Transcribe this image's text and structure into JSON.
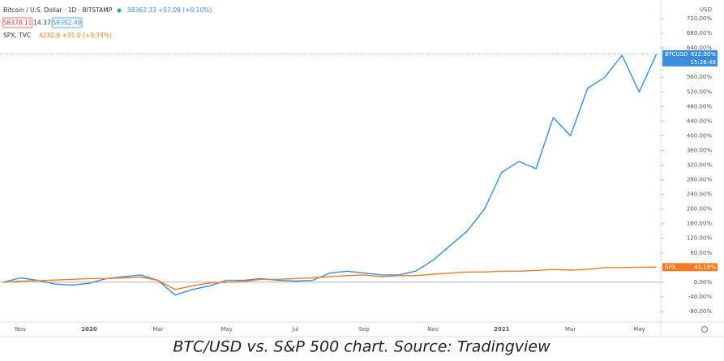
{
  "chart_data": {
    "type": "line",
    "header": {
      "symbol": "Bitcoin / U.S. Dollar · 1D · BITSTAMP",
      "quote": "58362.33 +57.09 (+0.10%)",
      "bid": "58378.11",
      "spread": "14.37",
      "ask": "58392.48",
      "compare_symbol": "SPX, TVC",
      "compare_quote": "4232.6 +31.0 (+0.74%)",
      "currency": "USD",
      "time": "15:28:48"
    },
    "caption": "BTC/USD vs. S&P 500 chart. Source: Tradingview",
    "categories": [
      null,
      "Nov",
      null,
      null,
      null,
      "2020",
      null,
      null,
      null,
      "Mar",
      null,
      null,
      null,
      "May",
      null,
      null,
      null,
      "Jul",
      null,
      null,
      null,
      "Sep",
      null,
      null,
      null,
      "Nov",
      null,
      null,
      null,
      "2021",
      null,
      null,
      null,
      "Mar",
      null,
      null,
      null,
      "May",
      null
    ],
    "series": [
      {
        "name": "BTCUSD",
        "color": "#3a8ee0",
        "values": [
          0,
          12,
          5,
          -5,
          -8,
          -3,
          10,
          15,
          20,
          5,
          -35,
          -20,
          -10,
          5,
          5,
          10,
          5,
          3,
          5,
          25,
          30,
          25,
          20,
          20,
          30,
          60,
          100,
          140,
          200,
          300,
          330,
          310,
          450,
          400,
          530,
          560,
          620,
          520,
          622.9
        ],
        "value_labels": [
          null,
          null,
          null,
          null,
          null,
          null,
          null,
          null,
          null,
          null,
          null,
          null,
          null,
          null,
          null,
          null,
          null,
          null,
          null,
          null,
          null,
          null,
          null,
          null,
          null,
          null,
          null,
          null,
          null,
          null,
          null,
          null,
          null,
          null,
          null,
          null,
          null,
          null,
          "622.90%"
        ]
      },
      {
        "name": "SPX",
        "color": "#f57c24",
        "values": [
          0,
          3,
          4,
          6,
          8,
          10,
          10,
          12,
          14,
          5,
          -20,
          -10,
          -2,
          0,
          2,
          8,
          8,
          10,
          12,
          15,
          18,
          20,
          15,
          18,
          18,
          22,
          25,
          28,
          28,
          30,
          30,
          32,
          35,
          33,
          35,
          40,
          40,
          41,
          41.18
        ],
        "value_labels": [
          null,
          null,
          null,
          null,
          null,
          null,
          null,
          null,
          null,
          null,
          null,
          null,
          null,
          null,
          null,
          null,
          null,
          null,
          null,
          null,
          null,
          null,
          null,
          null,
          null,
          null,
          null,
          null,
          null,
          null,
          null,
          null,
          null,
          null,
          null,
          null,
          null,
          null,
          "41.18%"
        ]
      }
    ],
    "ylim": [
      -100,
      760
    ],
    "yticks": [
      {
        "value": -80,
        "label": "-80.00%"
      },
      {
        "value": -40,
        "label": "-40.00%"
      },
      {
        "value": 0,
        "label": "0.00%"
      },
      {
        "value": 40,
        "label": "40.00%"
      },
      {
        "value": 80,
        "label": "80.00%"
      },
      {
        "value": 120,
        "label": "120.00%"
      },
      {
        "value": 160,
        "label": "160.00%"
      },
      {
        "value": 200,
        "label": "200.00%"
      },
      {
        "value": 240,
        "label": "240.00%"
      },
      {
        "value": 280,
        "label": "280.00%"
      },
      {
        "value": 320,
        "label": "320.00%"
      },
      {
        "value": 360,
        "label": "360.00%"
      },
      {
        "value": 400,
        "label": "400.00%"
      },
      {
        "value": 440,
        "label": "440.00%"
      },
      {
        "value": 480,
        "label": "480.00%"
      },
      {
        "value": 520,
        "label": "520.00%"
      },
      {
        "value": 560,
        "label": "560.00%"
      },
      {
        "value": 600,
        "label": "600.00%"
      },
      {
        "value": 640,
        "label": "640.00%"
      },
      {
        "value": 680,
        "label": "680.00%"
      },
      {
        "value": 720,
        "label": "720.00%"
      }
    ]
  }
}
